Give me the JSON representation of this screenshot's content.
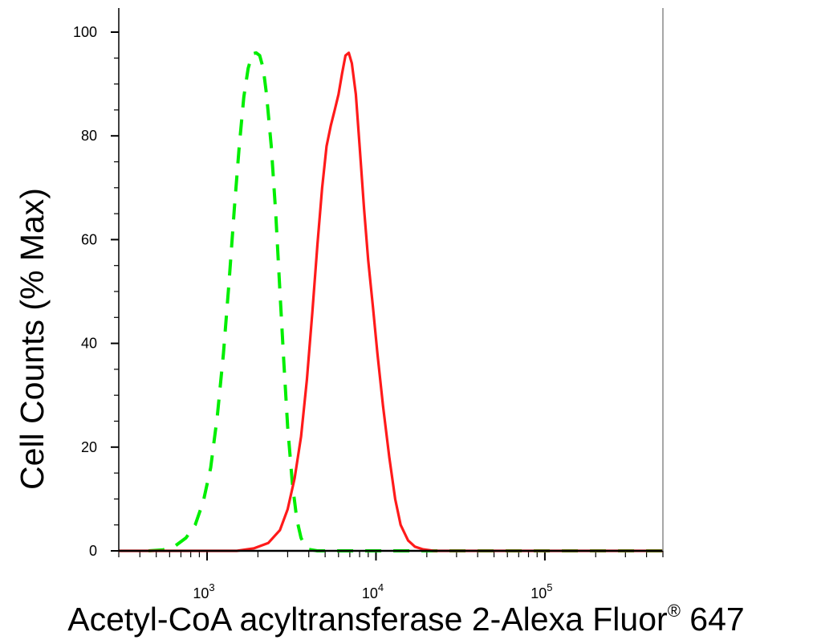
{
  "chart_data": {
    "type": "line",
    "title": "",
    "xlabel": "Acetyl-CoA acyltransferase 2-Alexa Fluor",
    "xlabel_superscript": "®",
    "xlabel_suffix": " 647",
    "ylabel": "Cell Counts (% Max)",
    "x_scale": "log",
    "xlim": [
      300,
      500000
    ],
    "ylim": [
      0,
      100
    ],
    "grid": false,
    "legend": "none",
    "y_ticks": [
      {
        "value": 0,
        "label": "0"
      },
      {
        "value": 20,
        "label": "20"
      },
      {
        "value": 40,
        "label": "40"
      },
      {
        "value": 60,
        "label": "60"
      },
      {
        "value": 80,
        "label": "80"
      },
      {
        "value": 100,
        "label": "100"
      }
    ],
    "x_ticks": [
      {
        "value": 1000,
        "base": "10",
        "exp": "3"
      },
      {
        "value": 10000,
        "base": "10",
        "exp": "4"
      },
      {
        "value": 100000,
        "base": "10",
        "exp": "5"
      }
    ],
    "series": [
      {
        "color": "#00ee00",
        "style": "dashed",
        "x": [
          450,
          550,
          650,
          750,
          850,
          950,
          1050,
          1150,
          1250,
          1350,
          1450,
          1550,
          1650,
          1750,
          1850,
          1950,
          2050,
          2150,
          2250,
          2400,
          2550,
          2700,
          2850,
          3000,
          3200,
          3400,
          3600,
          3800,
          4000,
          4500,
          6000,
          10000,
          20000,
          50000,
          100000,
          200000,
          500000
        ],
        "y": [
          0,
          0.2,
          1.0,
          2.5,
          5.0,
          9.5,
          16.0,
          26.0,
          38.0,
          52.0,
          66.0,
          78.0,
          87.5,
          93.0,
          95.8,
          96.0,
          95.5,
          93.0,
          88.0,
          78.0,
          65.0,
          50.0,
          36.0,
          24.0,
          13.0,
          6.0,
          2.5,
          1.0,
          0.3,
          0,
          0,
          0,
          0,
          0,
          0,
          0,
          0
        ]
      },
      {
        "color": "#ff1a1a",
        "style": "solid",
        "x": [
          300,
          1500,
          1900,
          2300,
          2700,
          3000,
          3300,
          3600,
          3900,
          4200,
          4500,
          4800,
          5100,
          5400,
          5700,
          6000,
          6300,
          6600,
          6900,
          7200,
          7600,
          8000,
          8500,
          9000,
          9600,
          10200,
          11000,
          12000,
          13000,
          14000,
          15500,
          17000,
          19000,
          22000,
          26000,
          35000,
          100000,
          500000
        ],
        "y": [
          0,
          0,
          0.5,
          1.5,
          4.0,
          8.0,
          14.0,
          22.0,
          33.0,
          46.0,
          59.0,
          70.0,
          78.0,
          82.0,
          85.0,
          88.0,
          92.0,
          95.5,
          96.0,
          94.0,
          88.0,
          78.0,
          66.0,
          56.0,
          47.0,
          38.0,
          28.0,
          18.0,
          10.0,
          5.0,
          2.0,
          0.8,
          0.3,
          0,
          0,
          0,
          0,
          0
        ]
      }
    ]
  }
}
